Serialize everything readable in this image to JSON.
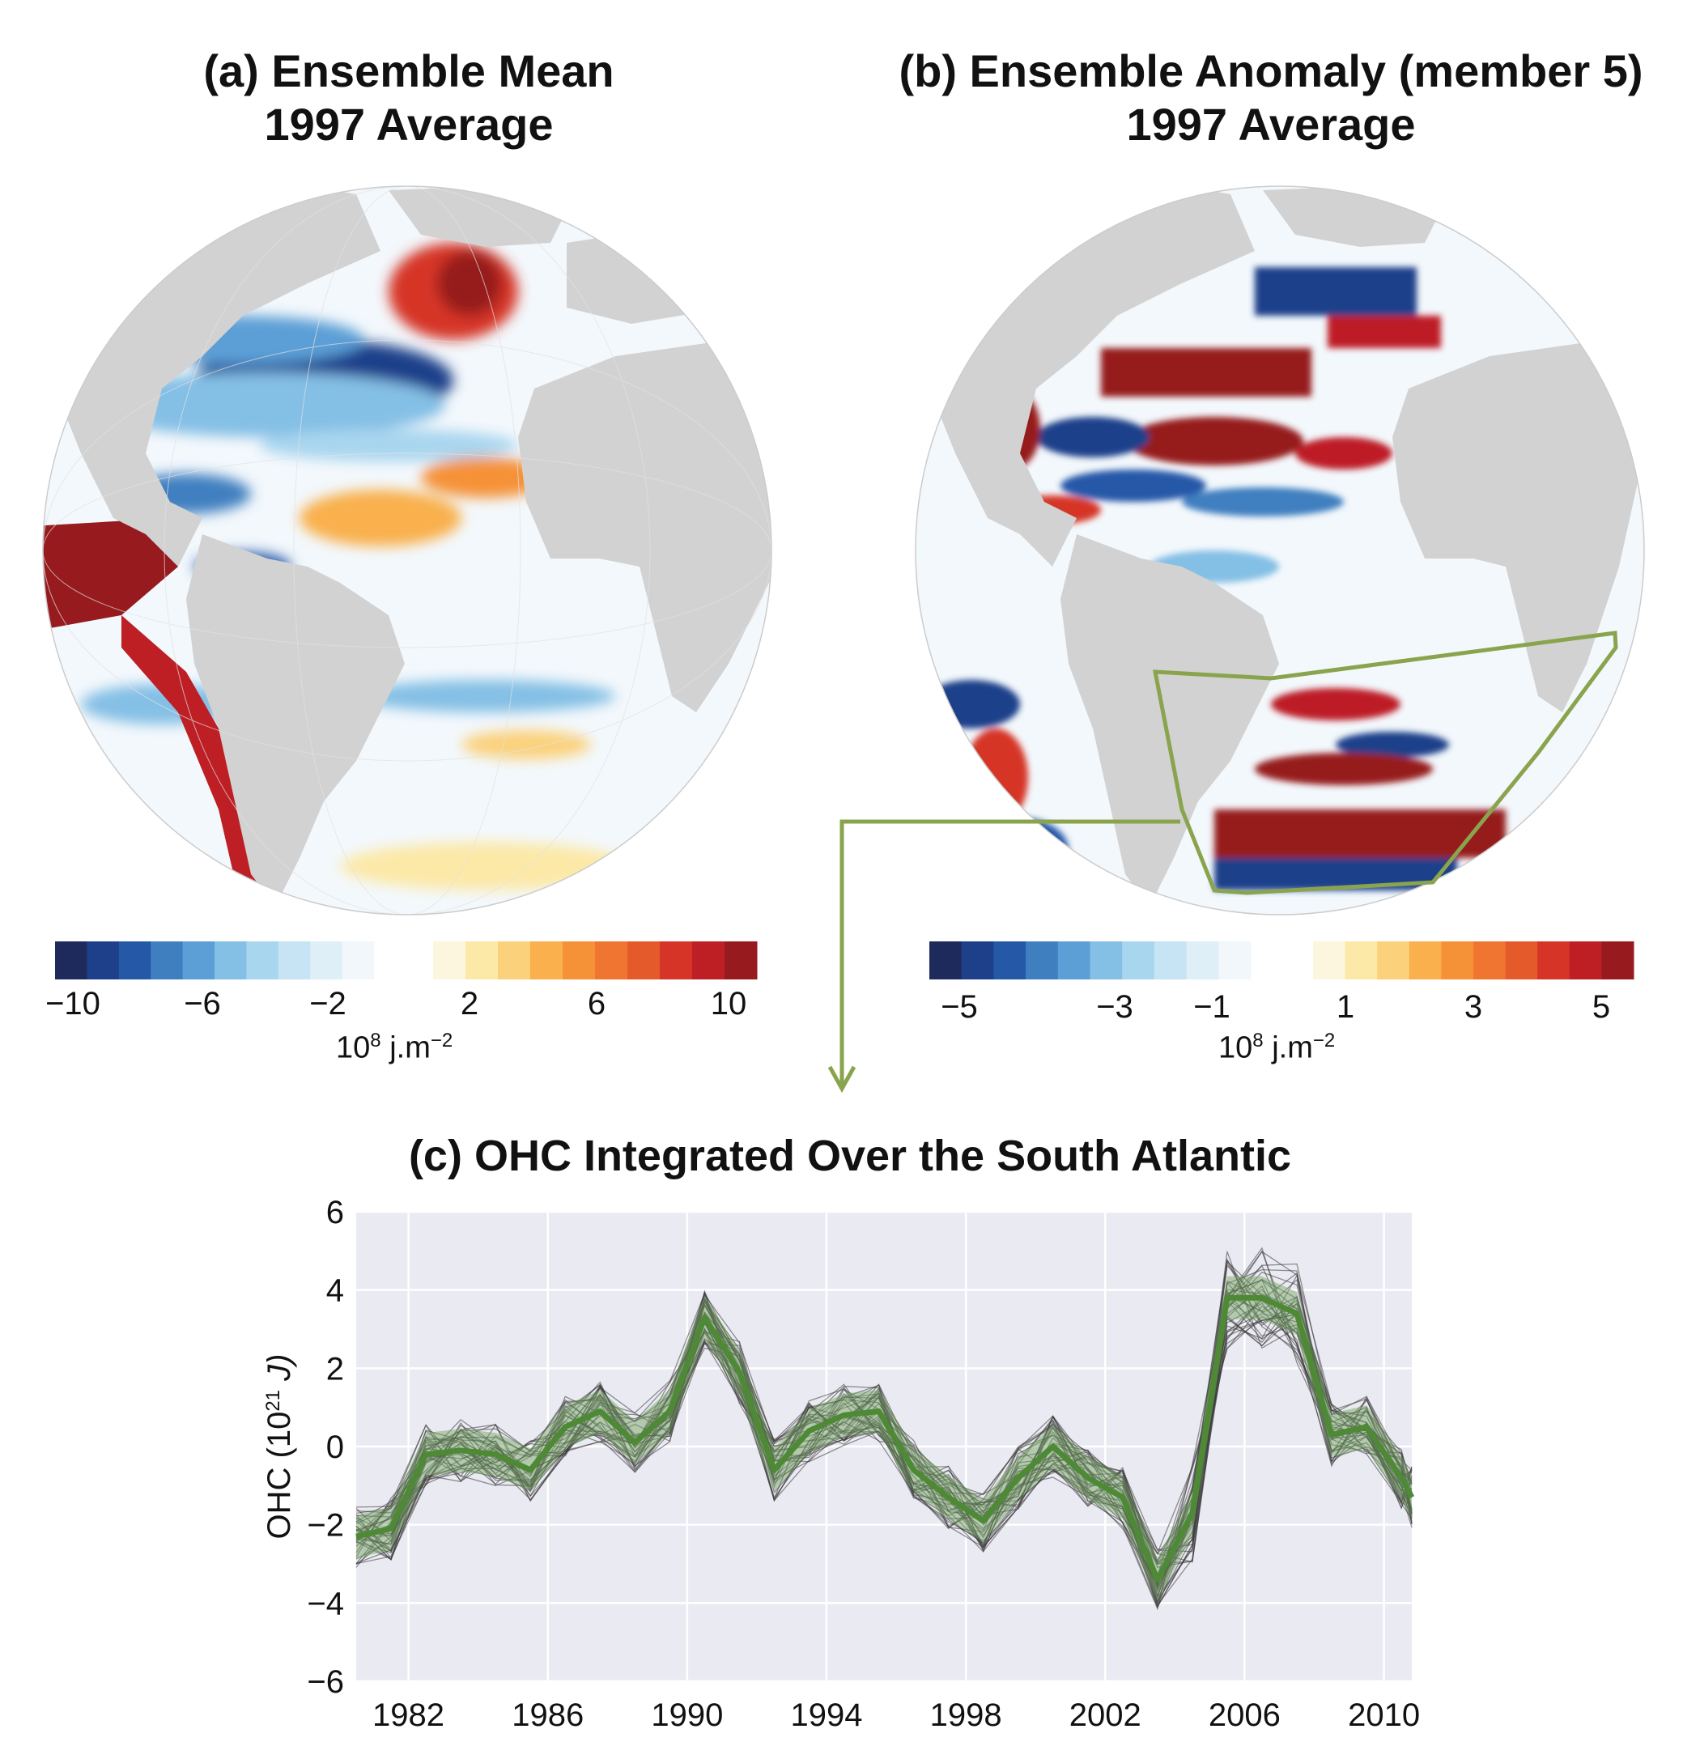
{
  "panel_a": {
    "title_line1": "(a) Ensemble Mean",
    "title_line2": "1997 Average",
    "colorbar": {
      "ticks": [
        "−10",
        "−6",
        "−2",
        "2",
        "6",
        "10"
      ],
      "unit_base": "10",
      "unit_exp": "8",
      "unit_rest": " j.m",
      "unit_exp2": "−2",
      "neg_colors": [
        "#1f2a5c",
        "#1e3f8a",
        "#2559a8",
        "#3f7fc0",
        "#5b9fd6",
        "#84bfe5",
        "#a9d6ef",
        "#c6e4f4",
        "#dfeff8",
        "#f1f7fb"
      ],
      "pos_colors": [
        "#fdf6de",
        "#fce9a8",
        "#fbd17c",
        "#f9b04d",
        "#f59237",
        "#ef7530",
        "#e55a2b",
        "#d63427",
        "#bd1f25",
        "#961a1e"
      ]
    }
  },
  "panel_b": {
    "title_line1": "(b) Ensemble Anomaly (member 5)",
    "title_line2": "1997 Average",
    "colorbar": {
      "ticks": [
        "−5",
        "−3",
        "−1",
        "1",
        "3",
        "5"
      ],
      "unit_base": "10",
      "unit_exp": "8",
      "unit_rest": " j.m",
      "unit_exp2": "−2"
    },
    "region_box_color": "#8aa44e"
  },
  "chart_data": {
    "type": "line",
    "title": "(c) OHC Integrated Over the South Atlantic",
    "ylabel": "OHC (10",
    "ylabel_exp": "21",
    "ylabel_unit": " J)",
    "xlim": [
      1980.5,
      2010.8
    ],
    "ylim": [
      -6,
      6
    ],
    "xticks": [
      1982,
      1986,
      1990,
      1994,
      1998,
      2002,
      2006,
      2010
    ],
    "yticks": [
      -6,
      -4,
      -2,
      0,
      2,
      4,
      6
    ],
    "grid": true,
    "x": [
      1980.5,
      1981.5,
      1982.5,
      1983.5,
      1984.5,
      1985.5,
      1986.5,
      1987.5,
      1988.5,
      1989.5,
      1990.5,
      1991.5,
      1992.5,
      1993.5,
      1994.5,
      1995.5,
      1996.5,
      1997.5,
      1998.5,
      1999.5,
      2000.5,
      2001.5,
      2002.5,
      2003.5,
      2004.5,
      2005.5,
      2006.5,
      2007.5,
      2008.5,
      2009.5,
      2010.5,
      2010.8
    ],
    "series": [
      {
        "values": [
          -2.3,
          -2.1,
          -0.2,
          -0.1,
          -0.2,
          -0.6,
          0.5,
          0.9,
          0.1,
          0.9,
          3.3,
          1.9,
          -0.6,
          0.4,
          0.8,
          0.9,
          -0.6,
          -1.3,
          -1.9,
          -0.8,
          0.0,
          -0.8,
          -1.3,
          -3.4,
          -1.7,
          3.8,
          3.8,
          3.4,
          0.3,
          0.5,
          -0.8,
          -1.3
        ],
        "color": "#4e8a35",
        "spread": 0.55,
        "spread_color": "#6fa25a"
      }
    ],
    "ensemble_color": "#3a3a3a"
  }
}
